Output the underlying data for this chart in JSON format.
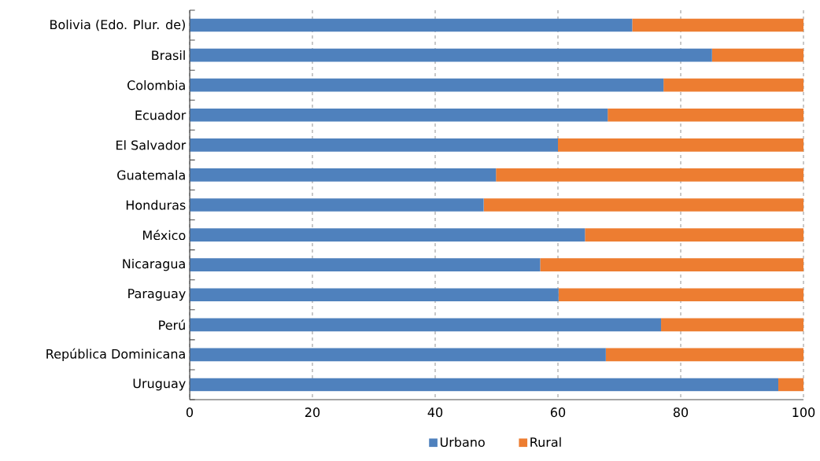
{
  "chart_data": {
    "type": "bar",
    "orientation": "horizontal",
    "stacked": true,
    "categories": [
      "Bolivia (Edo. Plur. de)",
      "Brasil",
      "Colombia",
      "Ecuador",
      "El Salvador",
      "Guatemala",
      "Honduras",
      "México",
      "Nicaragua",
      "Paraguay",
      "Perú",
      "República Dominicana",
      "Uruguay"
    ],
    "series": [
      {
        "name": "Urbano",
        "color": "#4f81bd",
        "values": [
          72.1,
          85.1,
          77.2,
          68.1,
          60.0,
          49.9,
          47.9,
          64.4,
          57.1,
          60.1,
          76.8,
          67.8,
          95.9
        ]
      },
      {
        "name": "Rural",
        "color": "#ed7d31",
        "values": [
          27.9,
          14.9,
          22.8,
          31.9,
          40.0,
          50.1,
          52.1,
          35.6,
          42.9,
          39.9,
          23.2,
          32.2,
          4.1
        ]
      }
    ],
    "xlim": [
      0,
      100
    ],
    "xticks": [
      0,
      20,
      40,
      60,
      80,
      100
    ],
    "grid": "x",
    "legend": "bottom"
  }
}
